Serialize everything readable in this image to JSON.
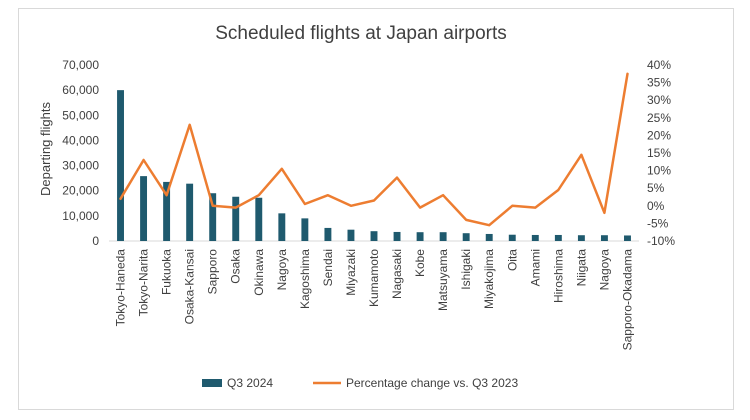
{
  "chart_data": {
    "type": "bar",
    "title": "Scheduled flights at Japan airports",
    "ylabel": "Departing flights",
    "y2label": "",
    "ylim": [
      0,
      70000
    ],
    "y_ticks": [
      "0",
      "10,000",
      "20,000",
      "30,000",
      "40,000",
      "50,000",
      "60,000",
      "70,000"
    ],
    "y2lim": [
      -0.1,
      0.4
    ],
    "y2_ticks": [
      "-10%",
      "-5%",
      "0%",
      "5%",
      "10%",
      "15%",
      "20%",
      "25%",
      "30%",
      "35%",
      "40%"
    ],
    "categories": [
      "Tokyo-Haneda",
      "Tokyo-Narita",
      "Fukuoka",
      "Osaka-Kansai",
      "Sapporo",
      "Osaka",
      "Okinawa",
      "Nagoya",
      "Kagoshima",
      "Sendai",
      "Miyazaki",
      "Kumamoto",
      "Nagasaki",
      "Kobe",
      "Matsuyama",
      "Ishigaki",
      "Miyakojima",
      "Oita",
      "Amami",
      "Hiroshima",
      "Niigata",
      "Nagoya",
      "Sapporo-Okadama"
    ],
    "series": [
      {
        "name": "Q3 2024",
        "kind": "bar",
        "axis": "left",
        "color": "#1f5a6e",
        "values": [
          60000,
          25800,
          23500,
          22800,
          19000,
          17600,
          17200,
          11000,
          9000,
          5200,
          4500,
          3900,
          3600,
          3500,
          3500,
          3100,
          2800,
          2500,
          2400,
          2400,
          2300,
          2300,
          2200
        ]
      },
      {
        "name": "Percentage change vs. Q3 2023",
        "kind": "line",
        "axis": "right",
        "color": "#ed7d31",
        "values": [
          0.02,
          0.13,
          0.03,
          0.23,
          0.0,
          -0.005,
          0.03,
          0.105,
          0.005,
          0.03,
          0.0,
          0.015,
          0.08,
          -0.005,
          0.03,
          -0.04,
          -0.055,
          0.0,
          -0.005,
          0.045,
          0.145,
          -0.02,
          0.375
        ]
      }
    ],
    "legend_position": "bottom",
    "grid": false
  }
}
